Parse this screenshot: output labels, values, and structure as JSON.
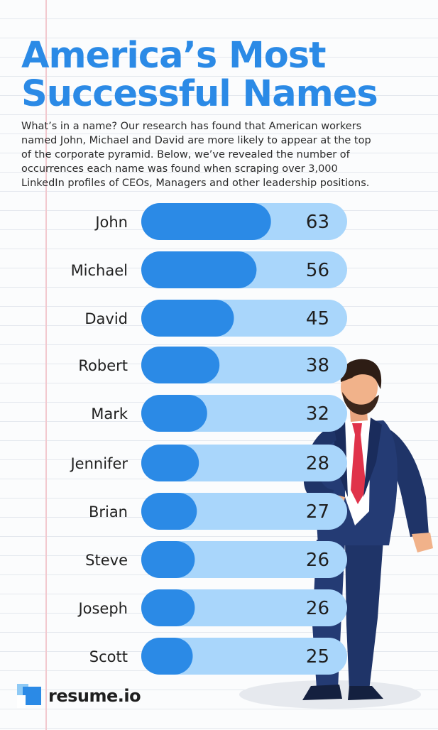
{
  "title_line1": "America’s Most",
  "title_line2": "Successful Names",
  "subtitle_lines": [
    "What’s in a name? Our research has found that American workers",
    "named John, Michael and David are more likely to appear at the top",
    "of the corporate pyramid. Below, we’ve revealed the number of",
    "occurrences each name was found when scraping over 3,000",
    "LinkedIn profiles of CEOs, Managers and other leadership positions."
  ],
  "brand": "resume.io",
  "colors": {
    "title": "#2b8ae6",
    "bar_fill": "#2b8ae6",
    "bar_track": "#a9d6fb",
    "margin_line": "#f2c9cf"
  },
  "chart_data": {
    "type": "bar",
    "orientation": "horizontal",
    "categories": [
      "John",
      "Michael",
      "David",
      "Robert",
      "Mark",
      "Jennifer",
      "Brian",
      "Steve",
      "Joseph",
      "Scott"
    ],
    "values": [
      63,
      56,
      45,
      38,
      32,
      28,
      27,
      26,
      26,
      25
    ]
  }
}
